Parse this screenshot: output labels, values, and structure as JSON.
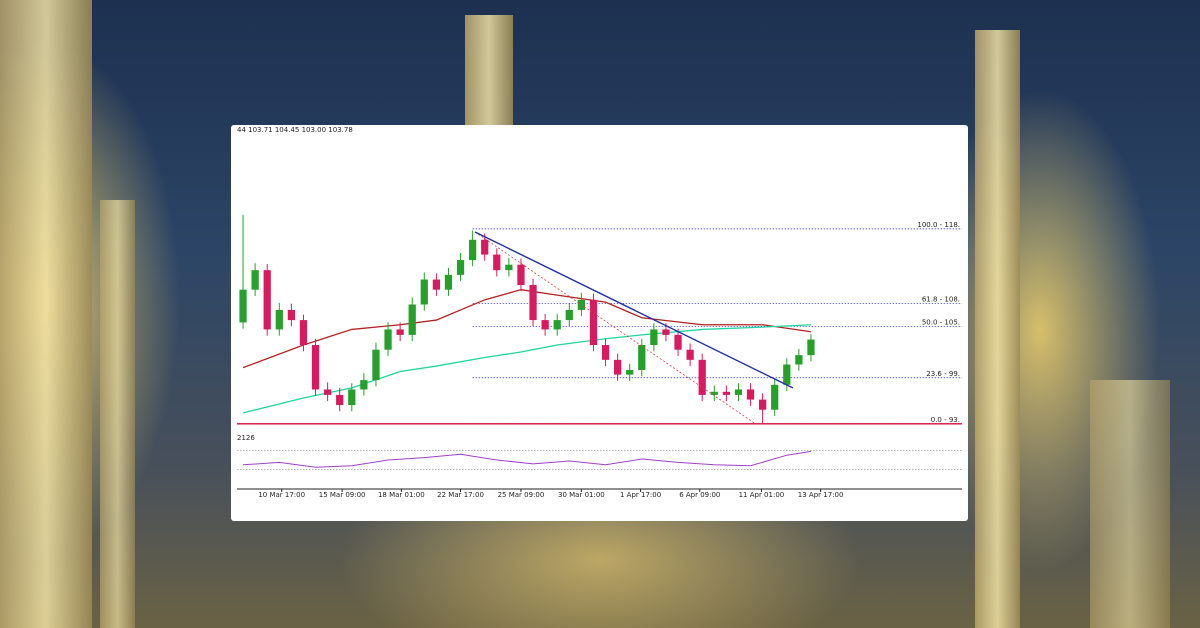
{
  "chart_data": {
    "type": "candlestick",
    "header": "44 103.71 104.45 103.00 103.78",
    "xlim": [
      -0.5,
      59.5
    ],
    "ylim": [
      92.2,
      129.4
    ],
    "xticks": [
      {
        "value": 3.2,
        "label": "10 Mar 17:00"
      },
      {
        "value": 8.2,
        "label": "15 Mar 09:00"
      },
      {
        "value": 13.1,
        "label": "18 Mar 01:00"
      },
      {
        "value": 18,
        "label": "22 Mar 17:00"
      },
      {
        "value": 23,
        "label": "25 Mar 09:00"
      },
      {
        "value": 28,
        "label": "30 Mar 01:00"
      },
      {
        "value": 32.9,
        "label": "1 Apr 17:00"
      },
      {
        "value": 37.8,
        "label": "6 Apr 09:00"
      },
      {
        "value": 42.9,
        "label": "11 Apr 01:00"
      },
      {
        "value": 47.8,
        "label": "13 Apr 17:00"
      }
    ],
    "candles": {
      "up_color": "#26a02a",
      "down_color": "#d81b60",
      "open": [
        106.0,
        110.2,
        112.7,
        105.1,
        107.6,
        106.3,
        103.1,
        97.4,
        96.7,
        95.4,
        97.4,
        98.6,
        102.5,
        105.1,
        104.4,
        108.3,
        111.5,
        110.2,
        112.1,
        114.0,
        116.6,
        114.7,
        112.7,
        113.4,
        110.8,
        106.3,
        105.1,
        106.3,
        107.6,
        108.9,
        103.1,
        101.2,
        99.3,
        99.9,
        103.1,
        105.1,
        104.4,
        102.5,
        101.2,
        96.7,
        97.1,
        96.7,
        97.4,
        96.1,
        94.8,
        98.0,
        100.6,
        101.8
      ],
      "high": [
        119.8,
        113.6,
        113.5,
        108.5,
        108.4,
        107.0,
        103.9,
        98.3,
        97.6,
        98.2,
        99.5,
        103.4,
        106.0,
        106.0,
        109.2,
        112.4,
        112.3,
        113.0,
        114.9,
        117.8,
        117.4,
        115.5,
        114.3,
        114.2,
        111.6,
        107.1,
        107.1,
        108.4,
        109.8,
        109.7,
        103.9,
        102.0,
        100.7,
        103.9,
        105.9,
        105.9,
        105.2,
        103.3,
        102.0,
        97.9,
        97.9,
        98.2,
        98.2,
        96.9,
        98.8,
        101.4,
        102.6,
        104.5
      ],
      "low": [
        105.2,
        109.4,
        104.3,
        104.3,
        105.5,
        102.3,
        96.6,
        95.9,
        94.6,
        94.6,
        96.6,
        97.8,
        101.7,
        103.6,
        103.6,
        107.5,
        109.4,
        109.4,
        111.3,
        113.2,
        113.9,
        111.9,
        111.9,
        110.0,
        105.5,
        104.3,
        104.3,
        105.5,
        106.8,
        102.3,
        100.4,
        98.5,
        98.5,
        99.1,
        102.3,
        103.6,
        101.7,
        100.4,
        95.9,
        95.9,
        95.9,
        95.9,
        95.3,
        93.0,
        94.0,
        97.2,
        99.8,
        101.0
      ],
      "close": [
        110.2,
        112.7,
        105.1,
        107.6,
        106.3,
        103.1,
        97.4,
        96.7,
        95.4,
        97.4,
        98.6,
        102.5,
        105.1,
        104.4,
        108.3,
        111.5,
        110.2,
        112.1,
        114.0,
        116.6,
        114.7,
        112.7,
        113.4,
        110.8,
        106.3,
        105.1,
        106.3,
        107.6,
        108.9,
        103.1,
        101.2,
        99.3,
        99.9,
        103.1,
        105.1,
        104.4,
        102.5,
        101.2,
        96.7,
        97.1,
        96.7,
        97.4,
        96.1,
        94.8,
        98.0,
        100.6,
        101.8,
        103.8
      ]
    },
    "series": [
      {
        "color": "#b22222",
        "x": [
          0,
          5,
          9,
          13,
          16,
          20,
          23,
          26,
          30,
          33,
          38,
          43,
          47
        ],
        "values": [
          100.2,
          103.1,
          105.1,
          105.7,
          106.3,
          108.9,
          110.2,
          109.5,
          108.6,
          106.6,
          105.7,
          105.7,
          104.8
        ]
      },
      {
        "color": "#1fd6a0",
        "x": [
          0,
          5,
          9,
          13,
          16,
          20,
          23,
          26,
          30,
          33,
          38,
          43,
          47
        ],
        "values": [
          94.4,
          96.3,
          97.6,
          99.7,
          100.4,
          101.5,
          102.2,
          103.1,
          103.9,
          104.4,
          105.1,
          105.4,
          105.7
        ]
      }
    ],
    "trendline": {
      "color": "#1f2fa8",
      "x": [
        19.2,
        45.5
      ],
      "values": [
        117.6,
        97.6
      ]
    },
    "projection": {
      "color": "#d04040",
      "x": [
        19.2,
        42.4
      ],
      "values": [
        117.6,
        93.0
      ]
    },
    "fib": {
      "color": "#2a2ab0",
      "start": 19,
      "levels": [
        {
          "value": 118.0,
          "label": "100.0 - 118."
        },
        {
          "value": 108.45,
          "label": "61.8 - 108."
        },
        {
          "value": 105.5,
          "label": "50.0 - 105."
        },
        {
          "value": 98.9,
          "label": "23.6 - 99."
        },
        {
          "value": 93.0,
          "label": "0.0 - 93."
        }
      ]
    },
    "support": {
      "color": "#d0103a",
      "value": 93.0
    },
    "indicator": {
      "label": "2126",
      "color": "#a040c8",
      "ylim": [
        0,
        100
      ],
      "levels": [
        70,
        30
      ],
      "x": [
        0,
        3,
        6,
        9,
        12,
        15,
        18,
        21,
        24,
        27,
        30,
        33,
        36,
        39,
        42,
        45,
        47
      ],
      "values": [
        40,
        45,
        35,
        38,
        50,
        55,
        62,
        50,
        42,
        48,
        40,
        52,
        45,
        40,
        38,
        60,
        68
      ]
    }
  }
}
